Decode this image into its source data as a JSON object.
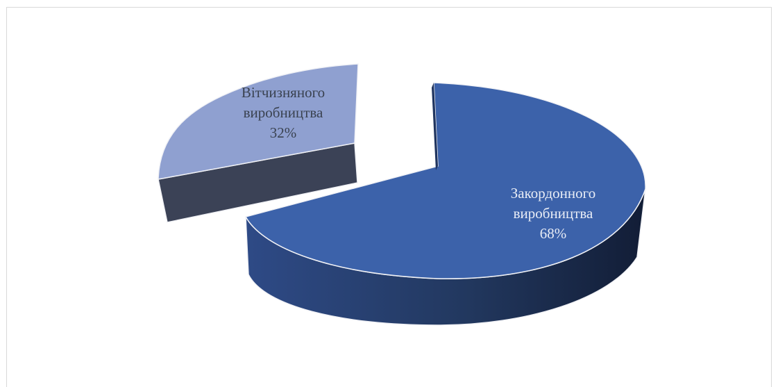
{
  "chart_data": {
    "type": "pie",
    "style": "3d-exploded",
    "title": "",
    "slices": [
      {
        "name_lines": [
          "Вітчизняного",
          "виробництва"
        ],
        "percent_label": "32%",
        "value": 32,
        "exploded": true,
        "top_color": "#8fa0d0",
        "side_color": "#3b4256"
      },
      {
        "name_lines": [
          "Закордонного",
          "виробництва"
        ],
        "percent_label": "68%",
        "value": 68,
        "exploded": false,
        "top_color": "#3c62aa",
        "side_color": "#1c2c4f"
      }
    ]
  }
}
